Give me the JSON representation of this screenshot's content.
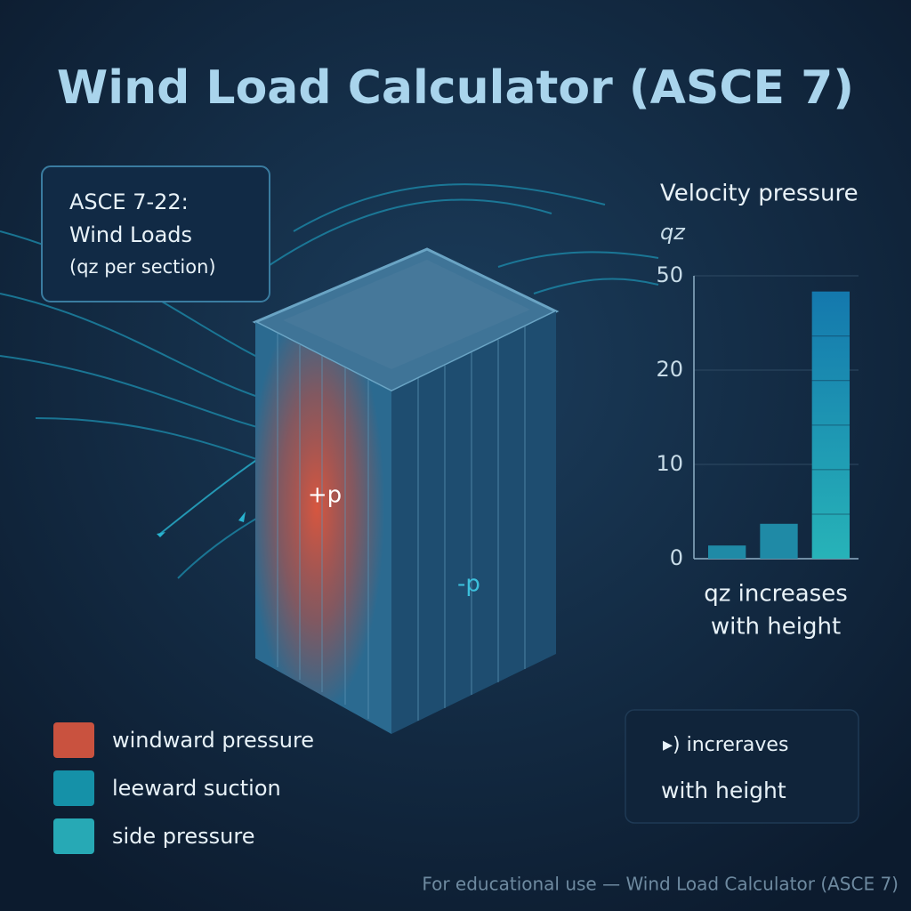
{
  "header": {
    "title": "Wind Load Calculator (ASCE 7)"
  },
  "info_box": {
    "lines": [
      "ASCE 7-22:",
      "Wind Loads",
      "(qz per section)"
    ]
  },
  "building": {
    "windward_label": "+p",
    "leeward_label": "-p"
  },
  "chart": {
    "type": "bar",
    "title": "Velocity pressure",
    "axis_label": "qz",
    "values": [
      1.4,
      3.7,
      45
    ],
    "colors": [
      "#1f8aa6",
      "#1f8aa6",
      "#1aa3bf"
    ],
    "ylim": [
      0,
      50
    ],
    "yticks": [
      0,
      10,
      20,
      50
    ],
    "grid": true,
    "caption": [
      "qz increases",
      "with height"
    ]
  },
  "legend": [
    {
      "label": "windward pressure",
      "color": "#c9523f"
    },
    {
      "label": "leeward suction",
      "color": "#1591a8"
    },
    {
      "label": "side pressure",
      "color": "#27a9b5"
    }
  ],
  "note_box": {
    "lines": [
      "▸) increraves",
      "with height"
    ]
  },
  "footer": "For educational use — Wind Load Calculator (ASCE 7)"
}
